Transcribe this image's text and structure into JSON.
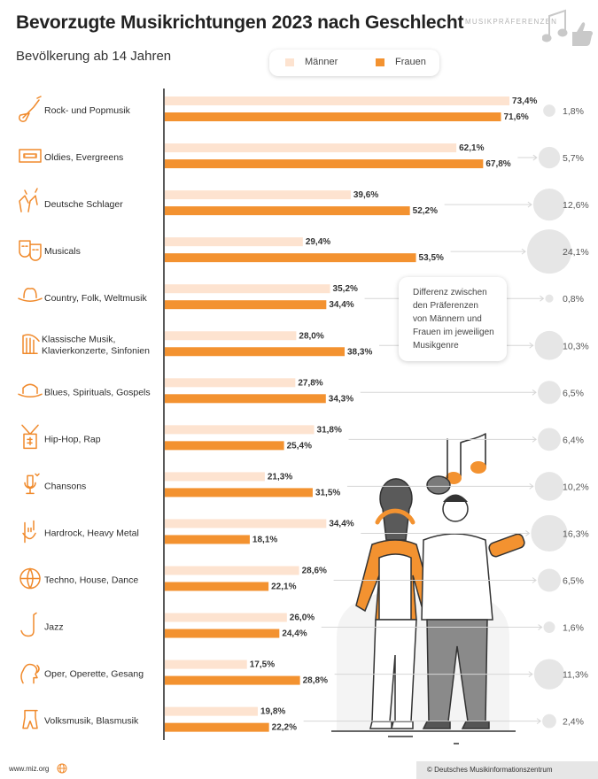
{
  "header": {
    "title": "Bevorzugte Musikrichtungen 2023 nach Geschlecht",
    "subtitle": "Bevölkerung ab 14 Jahren",
    "brand": "MUSIKPRÄFERENZEN"
  },
  "legend": {
    "men_label": "Männer",
    "women_label": "Frauen"
  },
  "tooltip": {
    "lines": [
      "Differenz zwischen",
      "den Präferenzen",
      "von Männern und",
      "Frauen im jeweiligen",
      "Musikgenre"
    ]
  },
  "footer": {
    "url": "www.miz.org",
    "copyright": "© Deutsches Musikinformationszentrum"
  },
  "colors": {
    "men": "#fde3d0",
    "women": "#f39230",
    "bubble": "#e6e6e6",
    "icon": "#f08a2c"
  },
  "chart_data": {
    "type": "bar",
    "orientation": "horizontal",
    "title": "Bevorzugte Musikrichtungen 2023 nach Geschlecht",
    "subtitle": "Bevölkerung ab 14 Jahren",
    "categories": [
      [
        "Rock- und Popmusik"
      ],
      [
        "Oldies, Evergreens"
      ],
      [
        "Deutsche Schlager"
      ],
      [
        "Musicals"
      ],
      [
        "Country, Folk, Weltmusik"
      ],
      [
        "Klassische Musik,",
        "Klavierkonzerte, Sinfonien"
      ],
      [
        "Blues, Spirituals, Gospels"
      ],
      [
        "Hip-Hop, Rap"
      ],
      [
        "Chansons"
      ],
      [
        "Hardrock, Heavy Metal"
      ],
      [
        "Techno, House, Dance"
      ],
      [
        "Jazz"
      ],
      [
        "Oper, Operette, Gesang"
      ],
      [
        "Volksmusik, Blasmusik"
      ]
    ],
    "icons": [
      "guitar-icon",
      "cassette-icon",
      "clapping-hands-icon",
      "theater-masks-icon",
      "cowboy-hat-icon",
      "harp-icon",
      "bowler-hat-icon",
      "dollar-chain-icon",
      "microphone-heart-icon",
      "rock-hand-icon",
      "globe-icon",
      "saxophone-icon",
      "singer-head-icon",
      "lederhosen-icon"
    ],
    "series": [
      {
        "name": "Männer",
        "values": [
          73.4,
          62.1,
          39.6,
          29.4,
          35.2,
          28.0,
          27.8,
          31.8,
          21.3,
          34.4,
          28.6,
          26.0,
          17.5,
          19.8
        ],
        "labels": [
          "73,4%",
          "62,1%",
          "39,6%",
          "29,4%",
          "35,2%",
          "28,0%",
          "27,8%",
          "31,8%",
          "21,3%",
          "34,4%",
          "28,6%",
          "26,0%",
          "17,5%",
          "19,8%"
        ]
      },
      {
        "name": "Frauen",
        "values": [
          71.6,
          67.8,
          52.2,
          53.5,
          34.4,
          38.3,
          34.3,
          25.4,
          31.5,
          18.1,
          22.1,
          24.4,
          28.8,
          22.2
        ],
        "labels": [
          "71,6%",
          "67,8%",
          "52,2%",
          "53,5%",
          "34,4%",
          "38,3%",
          "34,3%",
          "25,4%",
          "31,5%",
          "18,1%",
          "22,1%",
          "24,4%",
          "28,8%",
          "22,2%"
        ]
      }
    ],
    "difference": {
      "values": [
        1.8,
        5.7,
        12.6,
        24.1,
        0.8,
        10.3,
        6.5,
        6.4,
        10.2,
        16.3,
        6.5,
        1.6,
        11.3,
        2.4
      ],
      "labels": [
        "1,8%",
        "5,7%",
        "12,6%",
        "24,1%",
        "0,8%",
        "10,3%",
        "6,5%",
        "6,4%",
        "10,2%",
        "16,3%",
        "6,5%",
        "1,6%",
        "11,3%",
        "2,4%"
      ]
    },
    "xlim": [
      0,
      80
    ],
    "grid": false,
    "legend_position": "top"
  }
}
